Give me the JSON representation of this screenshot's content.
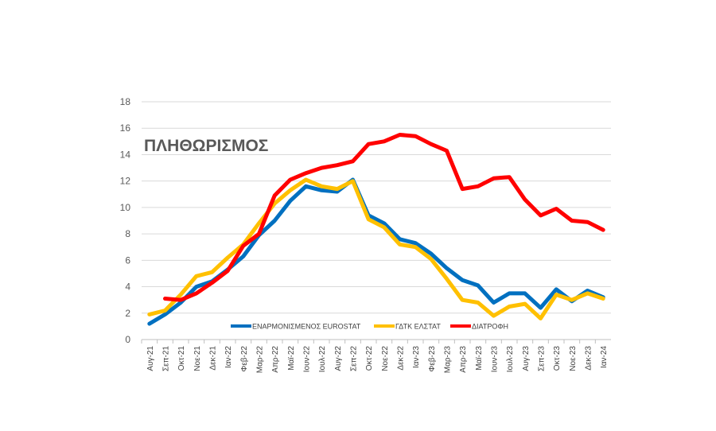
{
  "chart_data": {
    "type": "line",
    "title": "ΠΛΗΘΩΡΙΣΜΟΣ",
    "xlabel": "",
    "ylabel": "",
    "ylim": [
      0,
      18
    ],
    "yticks": [
      "0",
      "2",
      "4",
      "6",
      "8",
      "10",
      "12",
      "14",
      "16",
      "18"
    ],
    "grid": true,
    "legend_position": "bottom-inside",
    "categories": [
      "Αυγ-21",
      "Σεπ-21",
      "Οκτ-21",
      "Νοε-21",
      "Δεκ-21",
      "Ιαν-22",
      "Φεβ-22",
      "Μαρ-22",
      "Απρ-22",
      "Μαϊ-22",
      "Ιουν-22",
      "Ιουλ-22",
      "Αυγ-22",
      "Σεπ-22",
      "Οκτ-22",
      "Νοε-22",
      "Δεκ-22",
      "Ιαν-23",
      "Φεβ-23",
      "Μαρ-23",
      "Απρ-23",
      "Μαϊ-23",
      "Ιουν-23",
      "Ιουλ-23",
      "Αυγ-23",
      "Σεπ-23",
      "Οκτ-23",
      "Νοε-23",
      "Δεκ-23",
      "Ιαν-24"
    ],
    "series": [
      {
        "name": "ΕΝΑΡΜΟΝΙΣΜΕΝΟΣ EUROSTAT",
        "color": "#0070C0",
        "values": [
          1.2,
          1.9,
          2.8,
          4.0,
          4.4,
          5.3,
          6.3,
          7.9,
          9.0,
          10.5,
          11.6,
          11.3,
          11.2,
          12.1,
          9.4,
          8.8,
          7.6,
          7.3,
          6.5,
          5.4,
          4.5,
          4.1,
          2.8,
          3.5,
          3.5,
          2.4,
          3.8,
          2.9,
          3.7,
          3.2
        ]
      },
      {
        "name": "ΓΔΤΚ ΕΛΣΤΑΤ",
        "color": "#FFC000",
        "values": [
          1.9,
          2.2,
          3.4,
          4.8,
          5.1,
          6.2,
          7.2,
          8.8,
          10.3,
          11.3,
          12.1,
          11.6,
          11.4,
          12.0,
          9.1,
          8.5,
          7.2,
          7.0,
          6.1,
          4.6,
          3.0,
          2.8,
          1.8,
          2.5,
          2.7,
          1.6,
          3.4,
          3.0,
          3.5,
          3.1
        ]
      },
      {
        "name": "ΔΙΑΤΡΟΦΗ",
        "color": "#FF0000",
        "values": [
          null,
          3.1,
          3.0,
          3.5,
          4.3,
          5.2,
          7.1,
          8.0,
          10.9,
          12.1,
          12.6,
          13.0,
          13.2,
          13.5,
          14.8,
          15.0,
          15.5,
          15.4,
          14.8,
          14.3,
          11.4,
          11.6,
          12.2,
          12.3,
          10.6,
          9.4,
          9.9,
          9.0,
          8.9,
          8.3
        ]
      }
    ]
  }
}
